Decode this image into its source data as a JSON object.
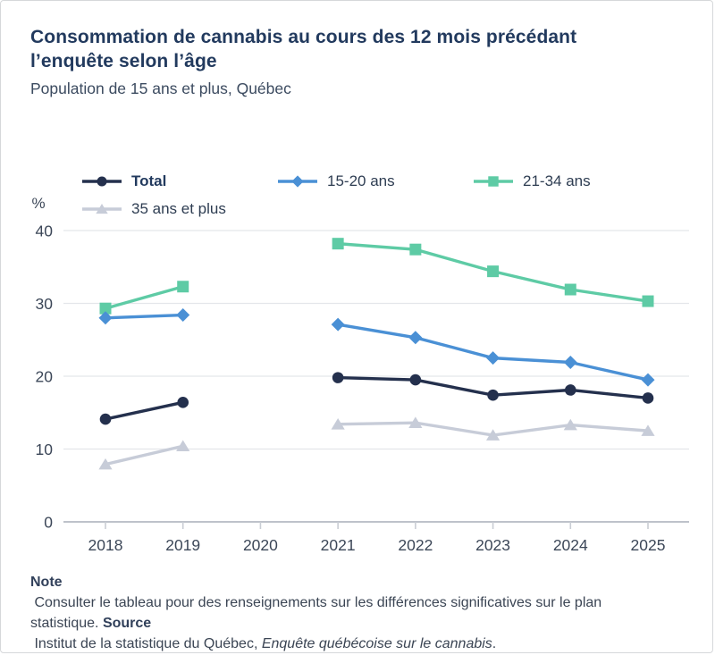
{
  "card": {
    "title": "Consommation de cannabis au cours des 12 mois précédant l’enquête selon l’âge",
    "subtitle": "Population de 15 ans et plus, Québec"
  },
  "chart_data": {
    "type": "line",
    "x": [
      2018,
      2019,
      2020,
      2021,
      2022,
      2023,
      2024,
      2025
    ],
    "xlabel": "",
    "ylabel": "%",
    "ylim": [
      0,
      40
    ],
    "yticks": [
      0,
      10,
      20,
      30,
      40
    ],
    "grid": true,
    "legend_position": "top",
    "note": "no data for 2020 (gap in all series)",
    "series": [
      {
        "name": "Total",
        "marker": "circle",
        "color": "#24304d",
        "bold_label": true,
        "values": [
          14.1,
          16.4,
          null,
          19.8,
          19.5,
          17.4,
          18.1,
          17.0
        ]
      },
      {
        "name": "15-20 ans",
        "marker": "diamond",
        "color": "#4a90d5",
        "bold_label": false,
        "values": [
          28.0,
          28.4,
          null,
          27.1,
          25.3,
          22.5,
          21.9,
          19.5
        ]
      },
      {
        "name": "21-34 ans",
        "marker": "square",
        "color": "#5ecba5",
        "bold_label": false,
        "values": [
          29.3,
          32.3,
          null,
          38.2,
          37.4,
          34.4,
          31.9,
          30.3
        ]
      },
      {
        "name": "35 ans et plus",
        "marker": "triangle",
        "color": "#c7ccd8",
        "bold_label": false,
        "values": [
          7.9,
          10.4,
          null,
          13.4,
          13.6,
          11.9,
          13.3,
          12.5
        ]
      }
    ]
  },
  "notes": {
    "note_label": "Note",
    "note_text": " Consulter le tableau pour des renseignements sur les différences significatives sur le plan statistique. ",
    "source_label": "Source",
    "source_text": " Institut de la statistique du Québec, ",
    "source_italic": "Enquête québécoise sur le cannabis",
    "source_period": "."
  },
  "colors": {
    "title": "#223a5e",
    "axis_text": "#3c4758",
    "gridline": "#e4e6ea",
    "zero_line": "#a8aeb9",
    "tick": "#c9cdd4",
    "card_border": "#d6d8da"
  }
}
